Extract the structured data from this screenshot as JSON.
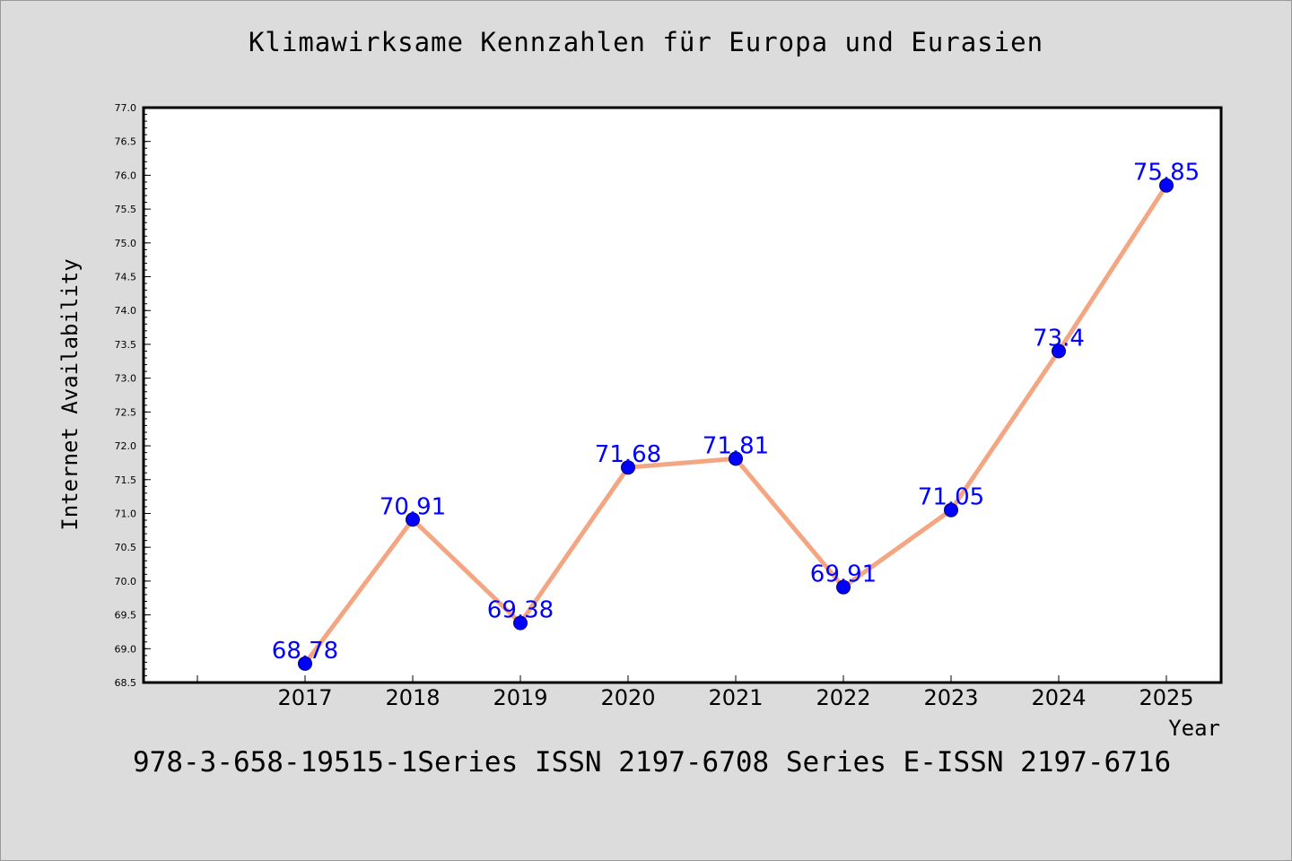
{
  "chart_data": {
    "type": "line",
    "title": "Klimawirksame Kennzahlen für Europa und Eurasien",
    "xlabel": "Year",
    "ylabel": "Internet Availability",
    "x": [
      "2017",
      "2018",
      "2019",
      "2020",
      "2021",
      "2022",
      "2023",
      "2024",
      "2025"
    ],
    "series": [
      {
        "values": [
          68.78,
          70.91,
          69.38,
          71.68,
          71.81,
          69.91,
          71.05,
          73.4,
          75.85
        ],
        "labels": [
          "68.78",
          "70.91",
          "69.38",
          "71.68",
          "71.81",
          "69.91",
          "71.05",
          "73.4",
          "75.85"
        ],
        "line_color": "#f4a582",
        "marker_color": "#0000ff"
      }
    ],
    "ylim": [
      68.5,
      77.0
    ],
    "yticks": [
      "68.5",
      "69.0",
      "69.5",
      "70.0",
      "70.5",
      "71.0",
      "71.5",
      "72.0",
      "72.5",
      "73.0",
      "73.5",
      "74.0",
      "74.5",
      "75.0",
      "75.5",
      "76.0",
      "76.5",
      "77.0"
    ],
    "grid": false,
    "label_color": "#0000ff"
  },
  "footer": "978-3-658-19515-1Series ISSN 2197-6708 Series E-ISSN 2197-6716"
}
